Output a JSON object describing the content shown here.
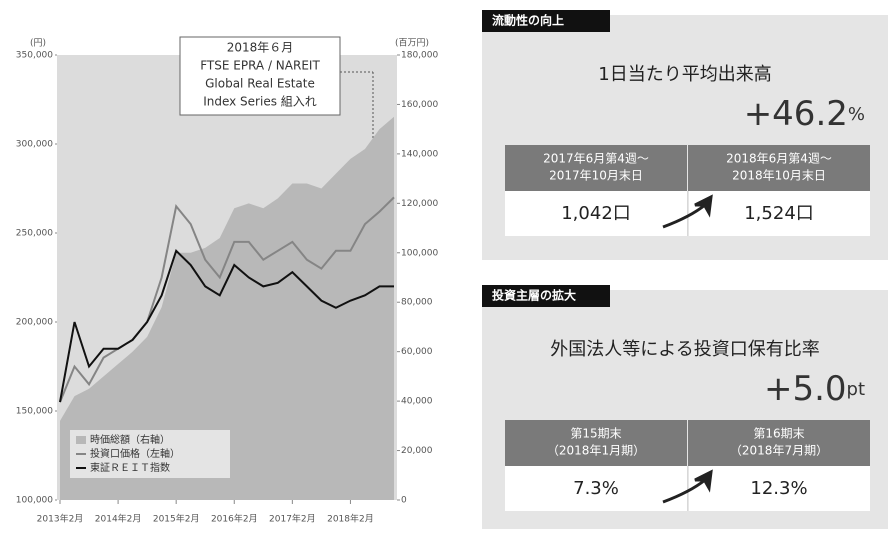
{
  "chart_data": {
    "type": "line",
    "y_unit": "(円)",
    "y2_unit": "(百万円)",
    "annotation": [
      "2018年６月",
      "FTSE EPRA / NAREIT",
      "Global Real Estate",
      "Index Series 組入れ"
    ],
    "x": [
      "2013-02",
      "2013-05",
      "2013-08",
      "2013-11",
      "2014-02",
      "2014-05",
      "2014-08",
      "2014-11",
      "2015-02",
      "2015-05",
      "2015-08",
      "2015-11",
      "2016-02",
      "2016-05",
      "2016-08",
      "2016-11",
      "2017-02",
      "2017-05",
      "2017-08",
      "2017-11",
      "2018-02",
      "2018-05",
      "2018-08",
      "2018-11"
    ],
    "xticks": [
      {
        "value": "2013-02",
        "label": "2013年2月"
      },
      {
        "value": "2014-02",
        "label": "2014年2月"
      },
      {
        "value": "2015-02",
        "label": "2015年2月"
      },
      {
        "value": "2016-02",
        "label": "2016年2月"
      },
      {
        "value": "2017-02",
        "label": "2017年2月"
      },
      {
        "value": "2018-02",
        "label": "2018年2月"
      }
    ],
    "ylim": [
      100000,
      350000
    ],
    "yticks": [
      {
        "value": 100000,
        "label": "100,000"
      },
      {
        "value": 150000,
        "label": "150,000"
      },
      {
        "value": 200000,
        "label": "200,000"
      },
      {
        "value": 250000,
        "label": "250,000"
      },
      {
        "value": 300000,
        "label": "300,000"
      },
      {
        "value": 350000,
        "label": "350,000"
      }
    ],
    "y2lim": [
      0,
      180000
    ],
    "y2ticks": [
      0,
      {
        "value": 20000,
        "label": "20,000"
      },
      {
        "value": 40000,
        "label": "40,000"
      },
      {
        "value": 60000,
        "label": "60,000"
      },
      {
        "value": 80000,
        "label": "80,000"
      },
      {
        "value": 100000,
        "label": "100,000"
      },
      {
        "value": 120000,
        "label": "120,000"
      },
      {
        "value": 140000,
        "label": "140,000"
      },
      {
        "value": 160000,
        "label": "160,000"
      },
      {
        "value": 180000,
        "label": "180,000"
      }
    ],
    "series": [
      {
        "name": "時価総額（右軸）",
        "kind": "area",
        "axis": "y2",
        "color": "#b8b8b8",
        "values": [
          32000,
          42000,
          45000,
          50000,
          55000,
          60000,
          66000,
          78000,
          100000,
          100000,
          102000,
          106000,
          118000,
          120000,
          118000,
          122000,
          128000,
          128000,
          126000,
          132000,
          138000,
          142000,
          150000,
          155000
        ]
      },
      {
        "name": "投資口価格（左軸）",
        "kind": "line",
        "color": "#858585",
        "values": [
          155000,
          175000,
          165000,
          180000,
          185000,
          190000,
          200000,
          225000,
          265000,
          255000,
          235000,
          225000,
          245000,
          245000,
          235000,
          240000,
          245000,
          235000,
          230000,
          240000,
          240000,
          255000,
          262000,
          270000
        ]
      },
      {
        "name": "東証ＲＥＩＴ指数",
        "kind": "line",
        "color": "#111111",
        "values": [
          155000,
          200000,
          175000,
          185000,
          185000,
          190000,
          200000,
          215000,
          240000,
          232000,
          220000,
          215000,
          232000,
          225000,
          220000,
          222000,
          228000,
          220000,
          212000,
          208000,
          212000,
          215000,
          220000,
          220000
        ]
      }
    ]
  },
  "panels": [
    {
      "header": "流動性の向上",
      "title": "1日当たり平均出来高",
      "change": "+46.2",
      "change_unit": "%",
      "columns": [
        [
          "2017年6月第4週～",
          "2017年10月末日"
        ],
        [
          "2018年6月第4週～",
          "2018年10月末日"
        ]
      ],
      "values": [
        "1,042口",
        "1,524口"
      ]
    },
    {
      "header": "投資主層の拡大",
      "title": "外国法人等による投資口保有比率",
      "change": "+5.0",
      "change_unit": "pt",
      "columns": [
        [
          "第15期末",
          "（2018年1月期）"
        ],
        [
          "第16期末",
          "（2018年7月期）"
        ]
      ],
      "values": [
        "7.3%",
        "12.3%"
      ]
    }
  ]
}
